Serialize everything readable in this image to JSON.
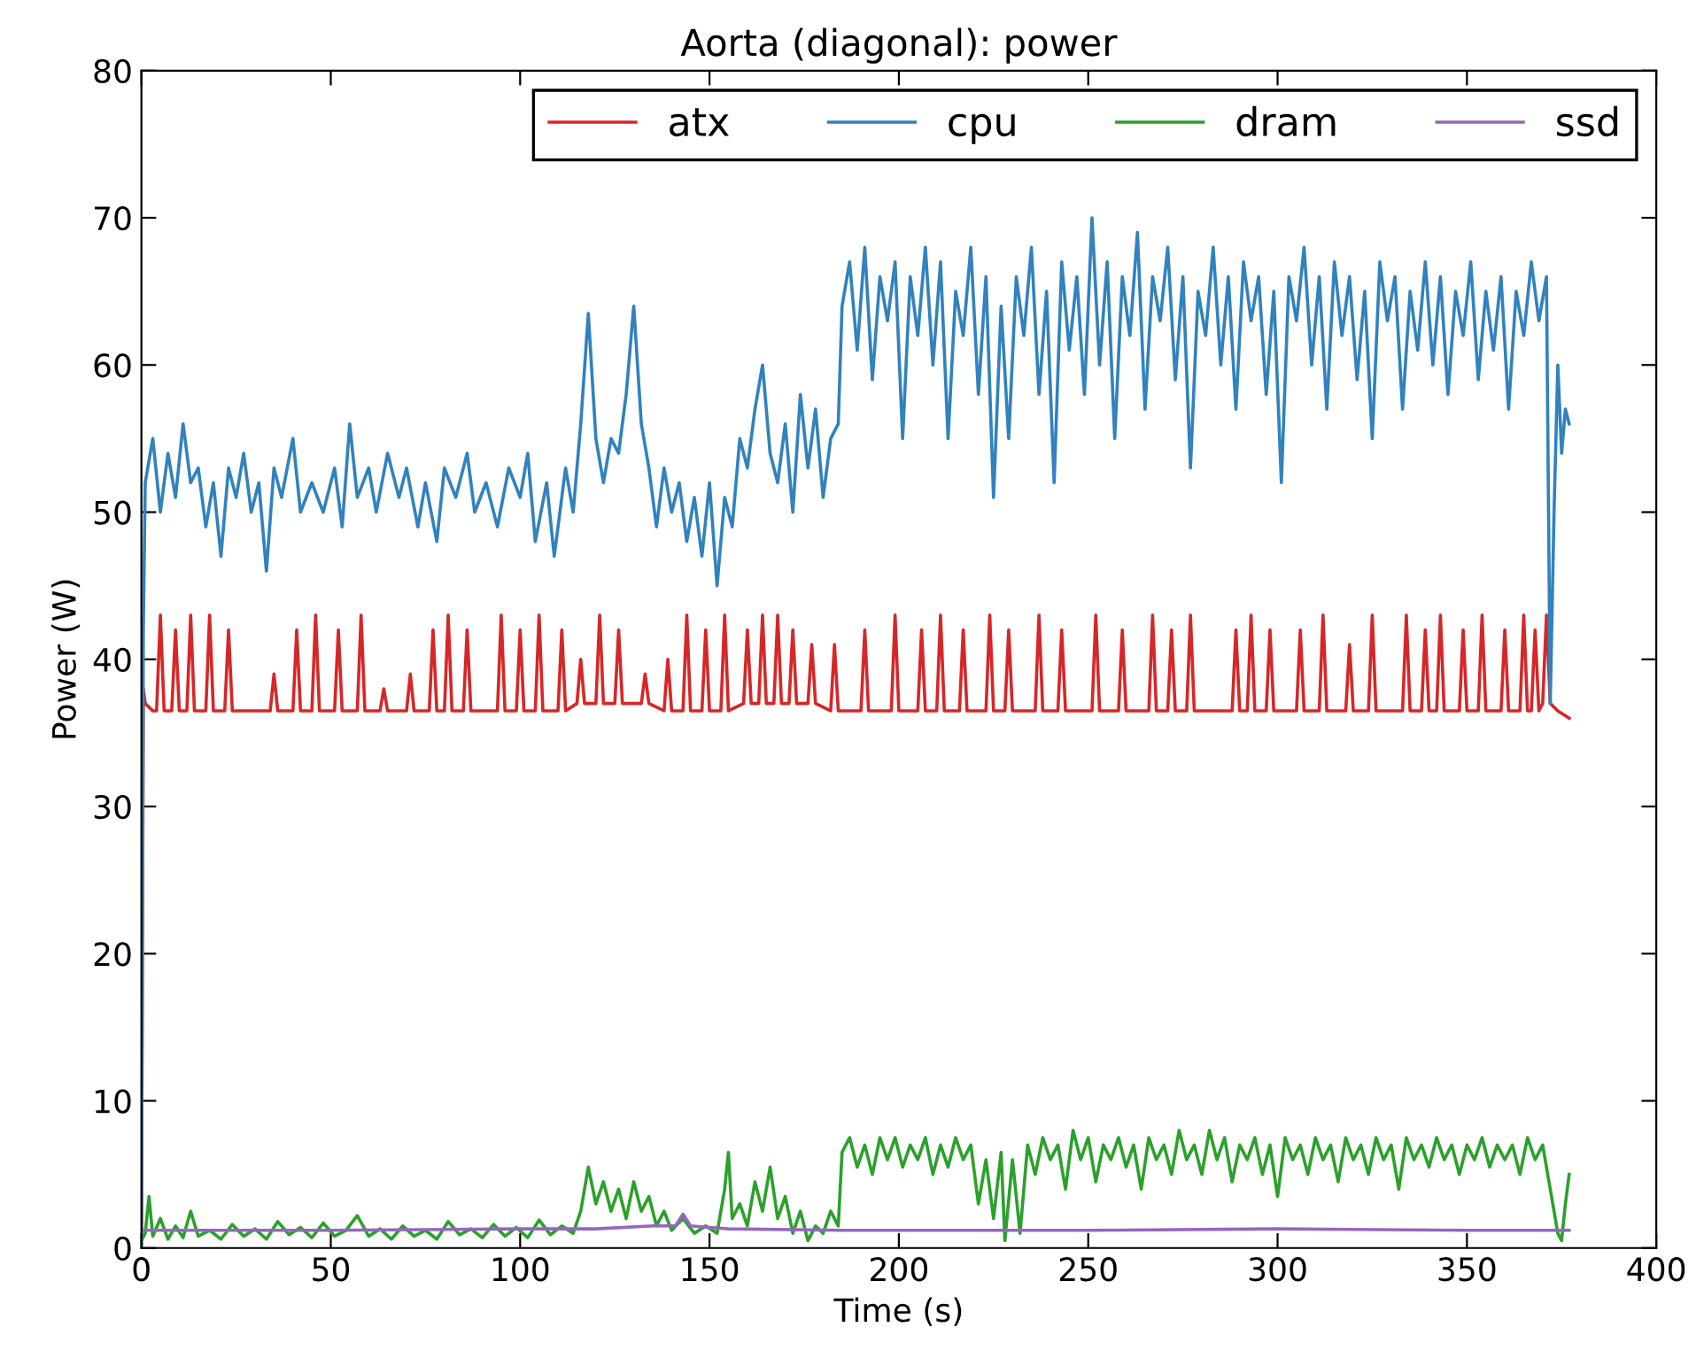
{
  "chart_data": {
    "type": "line",
    "title": "Aorta (diagonal): power",
    "xlabel": "Time (s)",
    "ylabel": "Power (W)",
    "xlim": [
      0,
      400
    ],
    "xticks": [
      0,
      50,
      100,
      150,
      200,
      250,
      300,
      350,
      400
    ],
    "ylim": [
      0,
      80
    ],
    "yticks": [
      0,
      10,
      20,
      30,
      40,
      50,
      60,
      70,
      80
    ],
    "grid": false,
    "legend": "top right",
    "line_style": "solid",
    "marker": "none",
    "series": [
      {
        "name": "atx",
        "color": "#d62728",
        "x": [
          0,
          0.5,
          1,
          3,
          4,
          5,
          6,
          8,
          9,
          10,
          12,
          13,
          14,
          17,
          18,
          19,
          22,
          23,
          24,
          34,
          35,
          36,
          40,
          41,
          42,
          45,
          46,
          47,
          51,
          52,
          53,
          57,
          58,
          59,
          63,
          64,
          65,
          70,
          71,
          72,
          76,
          77,
          78,
          80,
          81,
          82,
          85,
          86,
          87,
          94,
          95,
          96,
          99,
          100,
          101,
          104,
          105,
          106,
          110,
          111,
          112,
          115,
          116,
          117,
          120,
          121,
          122,
          125,
          126,
          127,
          132,
          133,
          134,
          138,
          139,
          140,
          143,
          144,
          145,
          148,
          149,
          150,
          153,
          154,
          155,
          159,
          160,
          161,
          163,
          164,
          165,
          167,
          168,
          169,
          171,
          172,
          173,
          176,
          177,
          178,
          182,
          183,
          184,
          190,
          191,
          192,
          198,
          199,
          200,
          205,
          206,
          207,
          210,
          211,
          212,
          216,
          217,
          218,
          223,
          224,
          225,
          228,
          229,
          230,
          236,
          237,
          238,
          242,
          243,
          244,
          251,
          252,
          253,
          258,
          259,
          260,
          266,
          267,
          268,
          271,
          272,
          273,
          276,
          277,
          278,
          288,
          289,
          290,
          292,
          293,
          294,
          297,
          298,
          299,
          305,
          306,
          307,
          311,
          312,
          313,
          318,
          319,
          320,
          324,
          325,
          326,
          333,
          334,
          335,
          338,
          339,
          340,
          342,
          343,
          344,
          348,
          349,
          350,
          353,
          354,
          355,
          359,
          360,
          361,
          364,
          365,
          366,
          367,
          368,
          369,
          370,
          371,
          372,
          374,
          377
        ],
        "values": [
          0,
          38,
          37,
          36.5,
          36.5,
          43,
          36.5,
          36.5,
          42,
          36.5,
          36.5,
          43,
          36.5,
          36.5,
          43,
          36.5,
          36.5,
          42,
          36.5,
          36.5,
          39,
          36.5,
          36.5,
          42,
          36.5,
          36.5,
          43,
          36.5,
          36.5,
          42,
          36.5,
          36.5,
          43,
          36.5,
          36.5,
          38,
          36.5,
          36.5,
          39,
          36.5,
          36.5,
          42,
          36.5,
          36.5,
          43,
          36.5,
          36.5,
          42,
          36.5,
          36.5,
          43,
          36.5,
          36.5,
          42,
          36.5,
          36.5,
          43,
          36.5,
          36.5,
          42,
          36.5,
          37,
          40,
          37,
          37,
          43,
          37,
          37,
          42,
          37,
          37,
          39,
          37,
          36.5,
          40,
          36.5,
          36.5,
          43,
          36.5,
          36.5,
          42,
          36.5,
          36.5,
          43,
          36.5,
          37,
          42,
          37,
          37,
          43,
          37,
          37,
          43,
          37,
          37,
          42,
          37,
          37,
          41,
          37,
          36.5,
          41,
          36.5,
          36.5,
          42,
          36.5,
          36.5,
          43,
          36.5,
          36.5,
          42,
          36.5,
          36.5,
          43,
          36.5,
          36.5,
          42,
          36.5,
          36.5,
          43,
          36.5,
          36.5,
          42,
          36.5,
          36.5,
          43,
          36.5,
          36.5,
          42,
          36.5,
          36.5,
          43,
          36.5,
          36.5,
          42,
          36.5,
          36.5,
          43,
          36.5,
          36.5,
          42,
          36.5,
          36.5,
          43,
          36.5,
          36.5,
          42,
          36.5,
          36.5,
          43,
          36.5,
          36.5,
          42,
          36.5,
          36.5,
          42,
          36.5,
          36.5,
          43,
          36.5,
          36.5,
          41,
          36.5,
          36.5,
          43,
          36.5,
          36.5,
          43,
          36.5,
          36.5,
          42,
          36.5,
          36.5,
          43,
          36.5,
          36.5,
          42,
          36.5,
          36.5,
          43,
          36.5,
          36.5,
          42,
          36.5,
          36.5,
          43,
          36.5,
          36.5,
          42,
          36.5,
          37,
          43,
          37,
          36.5,
          36
        ]
      },
      {
        "name": "cpu",
        "color": "#3182bd",
        "x": [
          0,
          0.5,
          1,
          3,
          5,
          7,
          9,
          11,
          13,
          15,
          17,
          19,
          21,
          23,
          25,
          27,
          29,
          31,
          33,
          35,
          37,
          40,
          42,
          45,
          48,
          51,
          53,
          55,
          57,
          60,
          62,
          65,
          68,
          70,
          73,
          75,
          78,
          80,
          83,
          86,
          88,
          91,
          94,
          97,
          100,
          102,
          104,
          107,
          109,
          112,
          114,
          116,
          118,
          120,
          122,
          124,
          126,
          128,
          130,
          132,
          134,
          136,
          138,
          140,
          142,
          144,
          146,
          148,
          150,
          152,
          154,
          156,
          158,
          160,
          162,
          164,
          166,
          168,
          170,
          172,
          174,
          176,
          178,
          180,
          182,
          184,
          185,
          187,
          189,
          191,
          193,
          195,
          197,
          199,
          201,
          203,
          205,
          207,
          209,
          211,
          213,
          215,
          217,
          219,
          221,
          223,
          225,
          227,
          229,
          231,
          233,
          235,
          237,
          239,
          241,
          243,
          245,
          247,
          249,
          251,
          253,
          255,
          257,
          259,
          261,
          263,
          265,
          267,
          269,
          271,
          273,
          275,
          277,
          279,
          281,
          283,
          285,
          287,
          289,
          291,
          293,
          295,
          297,
          299,
          301,
          303,
          305,
          307,
          309,
          311,
          313,
          315,
          317,
          319,
          321,
          323,
          325,
          327,
          329,
          331,
          333,
          335,
          337,
          339,
          341,
          343,
          345,
          347,
          349,
          351,
          353,
          355,
          357,
          359,
          361,
          363,
          365,
          367,
          369,
          371,
          372,
          373,
          374,
          375,
          376,
          377
        ],
        "values": [
          0,
          42,
          52,
          55,
          50,
          54,
          51,
          56,
          52,
          53,
          49,
          52,
          47,
          53,
          51,
          54,
          50,
          52,
          46,
          53,
          51,
          55,
          50,
          52,
          50,
          53,
          49,
          56,
          51,
          53,
          50,
          54,
          51,
          53,
          49,
          52,
          48,
          53,
          51,
          54,
          50,
          52,
          49,
          53,
          51,
          54,
          48,
          52,
          47,
          53,
          50,
          56,
          63.5,
          55,
          52,
          55,
          54,
          58,
          64,
          56,
          53,
          49,
          53,
          50,
          52,
          48,
          51,
          47,
          52,
          45,
          51,
          49,
          55,
          53,
          57,
          60,
          54,
          52,
          56,
          50,
          58,
          53,
          57,
          51,
          55,
          56,
          64,
          67,
          61,
          68,
          59,
          66,
          63,
          67,
          55,
          66,
          62,
          68,
          60,
          67,
          55,
          65,
          62,
          68,
          58,
          66,
          51,
          64,
          55,
          66,
          62,
          68,
          58,
          65,
          52,
          67,
          61,
          66,
          58,
          70,
          60,
          67,
          55,
          66,
          62,
          69,
          57,
          66,
          63,
          68,
          59,
          66,
          53,
          65,
          62,
          68,
          60,
          66,
          57,
          67,
          63,
          66,
          58,
          65,
          52,
          66,
          63,
          68,
          60,
          66,
          57,
          67,
          62,
          66,
          59,
          65,
          55,
          67,
          63,
          66,
          57,
          65,
          61,
          67,
          60,
          66,
          58,
          65,
          62,
          67,
          59,
          65,
          61,
          66,
          57,
          65,
          62,
          67,
          63,
          66,
          37,
          50,
          60,
          54,
          57,
          56
        ]
      },
      {
        "name": "dram",
        "color": "#2ca02c",
        "x": [
          0,
          1,
          2,
          3,
          5,
          7,
          9,
          11,
          13,
          15,
          18,
          21,
          24,
          27,
          30,
          33,
          36,
          39,
          42,
          45,
          48,
          51,
          54,
          57,
          60,
          63,
          66,
          69,
          72,
          75,
          78,
          81,
          84,
          87,
          90,
          93,
          96,
          99,
          102,
          105,
          108,
          111,
          114,
          116,
          118,
          120,
          122,
          124,
          126,
          128,
          130,
          132,
          134,
          136,
          138,
          140,
          143,
          146,
          149,
          152,
          154,
          155,
          156,
          158,
          160,
          162,
          164,
          166,
          168,
          170,
          172,
          174,
          176,
          178,
          180,
          182,
          184,
          185,
          187,
          189,
          191,
          193,
          195,
          197,
          199,
          201,
          203,
          205,
          207,
          209,
          211,
          213,
          215,
          217,
          219,
          221,
          223,
          225,
          227,
          228,
          230,
          232,
          234,
          236,
          238,
          240,
          242,
          244,
          246,
          248,
          250,
          252,
          254,
          256,
          258,
          260,
          262,
          264,
          266,
          268,
          270,
          272,
          274,
          276,
          278,
          280,
          282,
          284,
          286,
          288,
          290,
          292,
          294,
          296,
          298,
          300,
          302,
          304,
          306,
          308,
          310,
          312,
          314,
          316,
          318,
          320,
          322,
          324,
          326,
          328,
          330,
          332,
          334,
          336,
          338,
          340,
          342,
          344,
          346,
          348,
          350,
          352,
          354,
          356,
          358,
          360,
          362,
          364,
          366,
          368,
          370,
          372,
          374,
          375,
          376,
          377
        ],
        "values": [
          0.5,
          1,
          3.5,
          0.8,
          2,
          0.6,
          1.5,
          0.7,
          2.5,
          0.8,
          1.2,
          0.6,
          1.6,
          0.8,
          1.3,
          0.6,
          1.8,
          0.9,
          1.4,
          0.7,
          1.7,
          0.8,
          1.2,
          2.2,
          0.8,
          1.3,
          0.6,
          1.5,
          0.8,
          1.2,
          0.6,
          1.8,
          0.9,
          1.3,
          0.7,
          1.6,
          0.8,
          1.4,
          0.7,
          1.9,
          0.9,
          1.5,
          1,
          2.5,
          5.5,
          3,
          4.5,
          2.5,
          4,
          2,
          4.5,
          2.5,
          3.5,
          1.5,
          2.5,
          1.2,
          2,
          1,
          1.5,
          1,
          4,
          6.5,
          2,
          3,
          1.5,
          4.5,
          2.5,
          5.5,
          2,
          3.5,
          1,
          2.5,
          0.5,
          1.5,
          1,
          2.5,
          1.5,
          6.5,
          7.5,
          5.5,
          7,
          5,
          7.5,
          6,
          7.5,
          5.5,
          7,
          6,
          7.5,
          5,
          7,
          5.5,
          7.5,
          6,
          7,
          3,
          6,
          2,
          6.5,
          0.5,
          6,
          1,
          7,
          5,
          7.5,
          6,
          7,
          4,
          8,
          6,
          7.5,
          4.5,
          7,
          6,
          7.5,
          5.5,
          7,
          4,
          7.5,
          6,
          7,
          5,
          8,
          6,
          7,
          5,
          8,
          6,
          7.5,
          4.5,
          7,
          6,
          7.5,
          5,
          7,
          3.5,
          7.5,
          6,
          7,
          5,
          7.5,
          6,
          7,
          4.5,
          7.5,
          6,
          7,
          5,
          7.5,
          6,
          7,
          4,
          7.5,
          6,
          7,
          5.5,
          7.5,
          6,
          7,
          5,
          7,
          6,
          7.5,
          5.5,
          7,
          6,
          7,
          5,
          7.5,
          6,
          7,
          4,
          1,
          0.5,
          3,
          5
        ]
      },
      {
        "name": "ssd",
        "color": "#9467bd",
        "x": [
          0,
          50,
          100,
          120,
          135,
          141,
          143,
          145,
          150,
          155,
          185,
          250,
          300,
          350,
          377
        ],
        "values": [
          1.2,
          1.2,
          1.3,
          1.3,
          1.5,
          1.5,
          2.3,
          1.5,
          1.4,
          1.3,
          1.2,
          1.2,
          1.3,
          1.2,
          1.2
        ]
      }
    ]
  }
}
